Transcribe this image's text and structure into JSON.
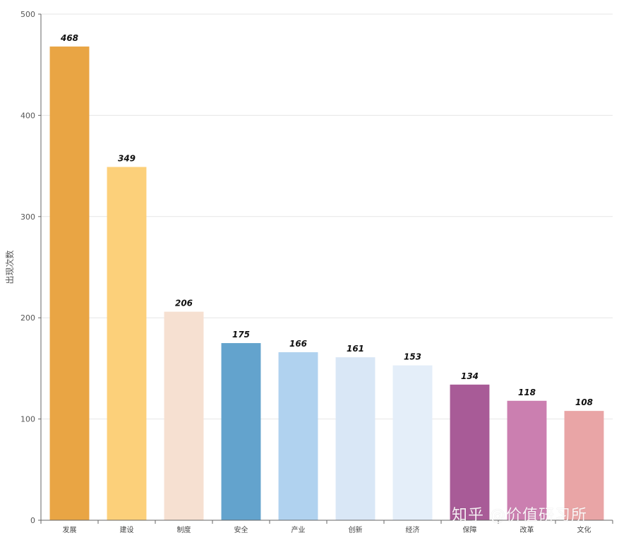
{
  "chart_data": {
    "type": "bar",
    "ylabel": "出现次数",
    "xlabel": "",
    "ylim": [
      0,
      500
    ],
    "yticks": [
      0,
      100,
      200,
      300,
      400,
      500
    ],
    "grid": true,
    "categories": [
      "发展",
      "建设",
      "制度",
      "安全",
      "产业",
      "创新",
      "经济",
      "保障",
      "改革",
      "文化"
    ],
    "values": [
      468,
      349,
      206,
      175,
      166,
      161,
      153,
      134,
      118,
      108
    ],
    "colors": [
      "#e9a544",
      "#fcd07a",
      "#f6e0d1",
      "#63a3cd",
      "#b0d2ef",
      "#d9e7f6",
      "#e4eef9",
      "#a85b97",
      "#cb7fb0",
      "#e9a5a6"
    ]
  },
  "watermark": "知乎 @价值研习所"
}
